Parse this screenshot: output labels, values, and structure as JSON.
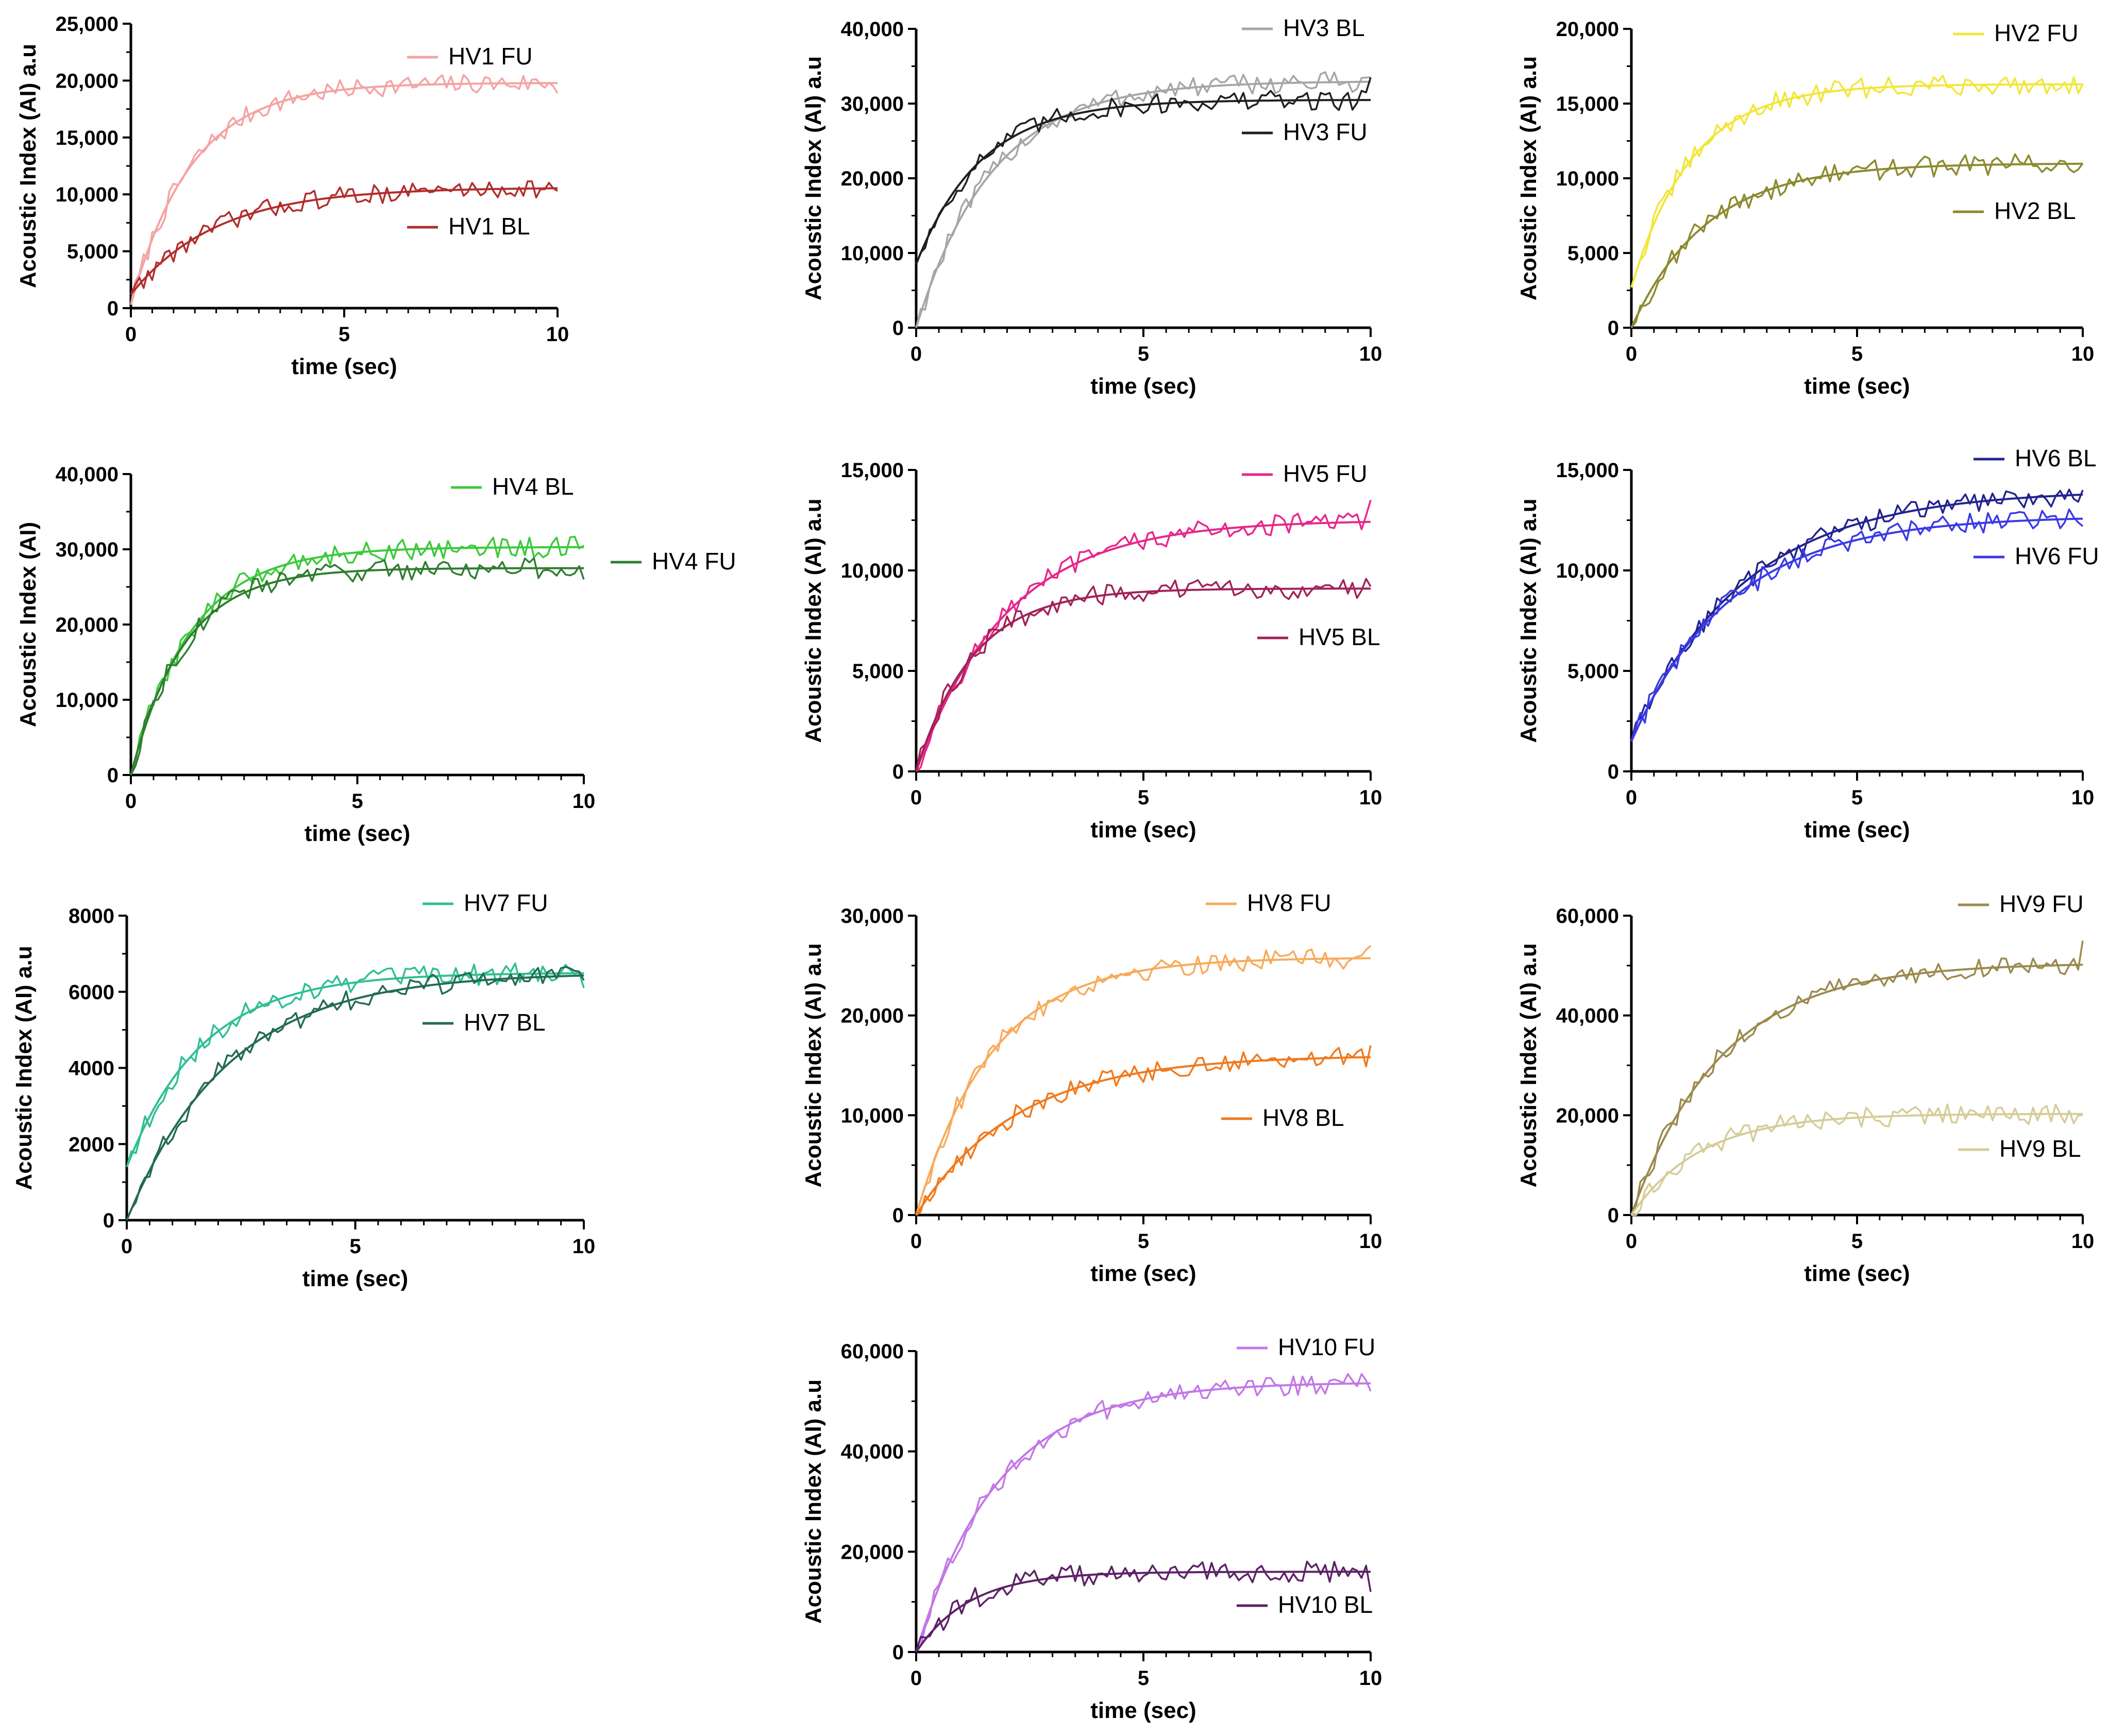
{
  "chart_data": [
    {
      "type": "line",
      "title": "",
      "xlabel": "time (sec)",
      "ylabel": "Acoustic Index (AI) a.u",
      "xlim": [
        0,
        10
      ],
      "ylim": [
        0,
        25000
      ],
      "xticks": [
        0,
        5,
        10
      ],
      "xtick_labels": [
        "0",
        "5",
        "10"
      ],
      "yticks": [
        0,
        5000,
        10000,
        15000,
        20000,
        25000
      ],
      "ytick_labels": [
        "0",
        "5,000",
        "10,000",
        "15,000",
        "20,000",
        "25,000"
      ],
      "grid": false,
      "series": [
        {
          "name": "HV1 FU",
          "color": "#f4a3a3",
          "fit": {
            "y0": 300,
            "plateau": 19800,
            "k": 0.7
          },
          "raw_end": 18900,
          "legend_pos": "top-right"
        },
        {
          "name": "HV1 BL",
          "color": "#b22d2d",
          "fit": {
            "y0": 1200,
            "plateau": 10600,
            "k": 0.5
          },
          "raw_end": 10300,
          "legend_pos": "middle-right"
        }
      ]
    },
    {
      "type": "line",
      "title": "",
      "xlabel": "time (sec)",
      "ylabel": "Acoustic Index (AI) a.u",
      "xlim": [
        0,
        10
      ],
      "ylim": [
        0,
        40000
      ],
      "xticks": [
        0,
        5,
        10
      ],
      "xtick_labels": [
        "0",
        "5",
        "10"
      ],
      "yticks": [
        0,
        10000,
        20000,
        30000,
        40000
      ],
      "ytick_labels": [
        "0",
        "10,000",
        "20,000",
        "30,000",
        "40,000"
      ],
      "grid": false,
      "series": [
        {
          "name": "HV3 BL",
          "color": "#a6a6a6",
          "fit": {
            "y0": 0,
            "plateau": 33000,
            "k": 0.6
          },
          "raw_end": 33500,
          "legend_pos": "top-right"
        },
        {
          "name": "HV3 FU",
          "color": "#1f1f1f",
          "fit": {
            "y0": 8500,
            "plateau": 30500,
            "k": 0.7
          },
          "raw_end": 33500,
          "legend_pos": "upper-right"
        }
      ]
    },
    {
      "type": "line",
      "title": "",
      "xlabel": "time (sec)",
      "ylabel": "Acoustic Index (AI) a.u",
      "xlim": [
        0,
        10
      ],
      "ylim": [
        0,
        20000
      ],
      "xticks": [
        0,
        5,
        10
      ],
      "xtick_labels": [
        "0",
        "5",
        "10"
      ],
      "yticks": [
        0,
        5000,
        10000,
        15000,
        20000
      ],
      "ytick_labels": [
        "0",
        "5,000",
        "10,000",
        "15,000",
        "20,000"
      ],
      "grid": false,
      "series": [
        {
          "name": "HV2 FU",
          "color": "#f2e63a",
          "fit": {
            "y0": 2700,
            "plateau": 16300,
            "k": 0.75
          },
          "raw_end": 16300,
          "legend_pos": "top-right"
        },
        {
          "name": "HV2 BL",
          "color": "#8c8a2e",
          "fit": {
            "y0": 0,
            "plateau": 11000,
            "k": 0.6
          },
          "raw_end": 11000,
          "legend_pos": "middle-right"
        }
      ]
    },
    {
      "type": "line",
      "title": "",
      "xlabel": "time (sec)",
      "ylabel": "Acoustic Index (AI)",
      "xlim": [
        0,
        10
      ],
      "ylim": [
        0,
        40000
      ],
      "xticks": [
        0,
        5,
        10
      ],
      "xtick_labels": [
        "0",
        "5",
        "10"
      ],
      "yticks": [
        0,
        10000,
        20000,
        30000,
        40000
      ],
      "ytick_labels": [
        "0",
        "10,000",
        "20,000",
        "30,000",
        "40,000"
      ],
      "grid": false,
      "series": [
        {
          "name": "HV4 BL",
          "color": "#3cc93c",
          "fit": {
            "y0": 0,
            "plateau": 30300,
            "k": 0.75
          },
          "raw_end": 30500,
          "legend_pos": "top-right"
        },
        {
          "name": "HV4 FU",
          "color": "#2f7d2f",
          "fit": {
            "y0": 0,
            "plateau": 27500,
            "k": 0.85
          },
          "raw_end": 26000,
          "legend_pos": "outside-right"
        }
      ]
    },
    {
      "type": "line",
      "title": "",
      "xlabel": "time (sec)",
      "ylabel": "Acoustic Index (AI) a.u",
      "xlim": [
        0,
        10
      ],
      "ylim": [
        0,
        15000
      ],
      "xticks": [
        0,
        5,
        10
      ],
      "xtick_labels": [
        "0",
        "5",
        "10"
      ],
      "yticks": [
        0,
        5000,
        10000,
        15000
      ],
      "ytick_labels": [
        "0",
        "5,000",
        "10,000",
        "15,000"
      ],
      "grid": false,
      "series": [
        {
          "name": "HV5 FU",
          "color": "#e6278a",
          "fit": {
            "y0": 0,
            "plateau": 12500,
            "k": 0.5
          },
          "raw_end": 13500,
          "legend_pos": "top-right"
        },
        {
          "name": "HV5 BL",
          "color": "#a12358",
          "fit": {
            "y0": 0,
            "plateau": 9100,
            "k": 0.8
          },
          "raw_end": 9200,
          "legend_pos": "middle-right"
        }
      ]
    },
    {
      "type": "line",
      "title": "",
      "xlabel": "time (sec)",
      "ylabel": "Acoustic Index (AI) a.u",
      "xlim": [
        0,
        10
      ],
      "ylim": [
        0,
        15000
      ],
      "xticks": [
        0,
        5,
        10
      ],
      "xtick_labels": [
        "0",
        "5",
        "10"
      ],
      "yticks": [
        0,
        5000,
        10000,
        15000
      ],
      "ytick_labels": [
        "0",
        "5,000",
        "10,000",
        "15,000"
      ],
      "grid": false,
      "series": [
        {
          "name": "HV6 BL",
          "color": "#23238f",
          "fit": {
            "y0": 1500,
            "plateau": 14000,
            "k": 0.4
          },
          "raw_end": 14000,
          "legend_pos": "top-right"
        },
        {
          "name": "HV6 FU",
          "color": "#3a3ae6",
          "fit": {
            "y0": 1500,
            "plateau": 12700,
            "k": 0.45
          },
          "raw_end": 12200,
          "legend_pos": "upper-right"
        }
      ]
    },
    {
      "type": "line",
      "title": "",
      "xlabel": "time (sec)",
      "ylabel": "Acoustic Index (AI) a.u",
      "xlim": [
        0,
        10
      ],
      "ylim": [
        0,
        8000
      ],
      "xticks": [
        0,
        5,
        10
      ],
      "xtick_labels": [
        "0",
        "5",
        "10"
      ],
      "yticks": [
        0,
        2000,
        4000,
        6000,
        8000
      ],
      "ytick_labels": [
        "0",
        "2000",
        "4000",
        "6000",
        "8000"
      ],
      "grid": false,
      "series": [
        {
          "name": "HV7 FU",
          "color": "#2fbf95",
          "fit": {
            "y0": 1400,
            "plateau": 6500,
            "k": 0.6
          },
          "raw_end": 6100,
          "legend_pos": "top-right"
        },
        {
          "name": "HV7 BL",
          "color": "#236b52",
          "fit": {
            "y0": 0,
            "plateau": 6500,
            "k": 0.45
          },
          "raw_end": 6300,
          "legend_pos": "upper-right"
        }
      ]
    },
    {
      "type": "line",
      "title": "",
      "xlabel": "time (sec)",
      "ylabel": "Acoustic Index (AI) a.u",
      "xlim": [
        0,
        10
      ],
      "ylim": [
        0,
        30000
      ],
      "xticks": [
        0,
        5,
        10
      ],
      "xtick_labels": [
        "0",
        "5",
        "10"
      ],
      "yticks": [
        0,
        10000,
        20000,
        30000
      ],
      "ytick_labels": [
        "0",
        "10,000",
        "20,000",
        "30,000"
      ],
      "grid": false,
      "series": [
        {
          "name": "HV8 FU",
          "color": "#f7ab5c",
          "fit": {
            "y0": 0,
            "plateau": 25800,
            "k": 0.6
          },
          "raw_end": 27000,
          "legend_pos": "top-right"
        },
        {
          "name": "HV8  BL",
          "color": "#f07a1e",
          "fit": {
            "y0": 0,
            "plateau": 16000,
            "k": 0.45
          },
          "raw_end": 17000,
          "legend_pos": "middle-right"
        }
      ]
    },
    {
      "type": "line",
      "title": "",
      "xlabel": "time (sec)",
      "ylabel": "Acoustic Index (AI) a.u",
      "xlim": [
        0,
        10
      ],
      "ylim": [
        0,
        60000
      ],
      "xticks": [
        0,
        5,
        10
      ],
      "xtick_labels": [
        "0",
        "5",
        "10"
      ],
      "yticks": [
        0,
        20000,
        40000,
        60000
      ],
      "ytick_labels": [
        "0",
        "20,000",
        "40,000",
        "60,000"
      ],
      "grid": false,
      "series": [
        {
          "name": "HV9 FU",
          "color": "#9c8a4e",
          "fit": {
            "y0": 0,
            "plateau": 50500,
            "k": 0.5
          },
          "raw_end": 55000,
          "legend_pos": "top-right"
        },
        {
          "name": "HV9 BL",
          "color": "#d6cc99",
          "fit": {
            "y0": 0,
            "plateau": 20300,
            "k": 0.65
          },
          "raw_end": 20000,
          "legend_pos": "lower-right"
        }
      ]
    },
    {
      "type": "line",
      "title": "",
      "xlabel": "time (sec)",
      "ylabel": "Acoustic Index (AI) a.u",
      "xlim": [
        0,
        10
      ],
      "ylim": [
        0,
        60000
      ],
      "xticks": [
        0,
        5,
        10
      ],
      "xtick_labels": [
        "0",
        "5",
        "10"
      ],
      "yticks": [
        0,
        20000,
        40000,
        60000
      ],
      "ytick_labels": [
        "0",
        "20,000",
        "40,000",
        "60,000"
      ],
      "grid": false,
      "series": [
        {
          "name": "HV10 FU",
          "color": "#c278e6",
          "fit": {
            "y0": 0,
            "plateau": 53800,
            "k": 0.55
          },
          "raw_end": 52000,
          "legend_pos": "top-right"
        },
        {
          "name": "HV10 BL",
          "color": "#5c2266",
          "fit": {
            "y0": 0,
            "plateau": 16000,
            "k": 0.85
          },
          "raw_end": 12000,
          "legend_pos": "lower-right"
        }
      ]
    }
  ]
}
